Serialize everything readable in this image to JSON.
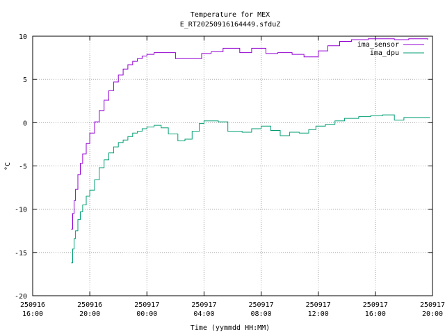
{
  "chart_data": {
    "type": "line",
    "title": "Temperature for MEX",
    "subtitle": "E_RT20250916164449.sfduZ",
    "xlabel": "Time (yymmdd HH:MM)",
    "ylabel": "°C",
    "xlim": [
      "2025-09-16 16:00",
      "2025-09-17 20:00"
    ],
    "ylim": [
      -20,
      10
    ],
    "grid": true,
    "legend_position": "top-right",
    "x_ticks": [
      {
        "date": "250916",
        "time": "16:00"
      },
      {
        "date": "250916",
        "time": "20:00"
      },
      {
        "date": "250917",
        "time": "00:00"
      },
      {
        "date": "250917",
        "time": "04:00"
      },
      {
        "date": "250917",
        "time": "08:00"
      },
      {
        "date": "250917",
        "time": "12:00"
      },
      {
        "date": "250917",
        "time": "16:00"
      },
      {
        "date": "250917",
        "time": "20:00"
      }
    ],
    "y_ticks": [
      -20,
      -15,
      -10,
      -5,
      0,
      5,
      10
    ],
    "series": [
      {
        "name": "ima_sensor",
        "color": "#9400d3",
        "step": true,
        "x": [
          "2025-09-16 18:42",
          "2025-09-16 18:48",
          "2025-09-16 18:54",
          "2025-09-16 19:00",
          "2025-09-16 19:10",
          "2025-09-16 19:20",
          "2025-09-16 19:30",
          "2025-09-16 19:45",
          "2025-09-16 20:00",
          "2025-09-16 20:20",
          "2025-09-16 20:40",
          "2025-09-16 21:00",
          "2025-09-16 21:20",
          "2025-09-16 21:40",
          "2025-09-16 22:00",
          "2025-09-16 22:20",
          "2025-09-16 22:40",
          "2025-09-16 23:00",
          "2025-09-16 23:20",
          "2025-09-16 23:40",
          "2025-09-17 00:00",
          "2025-09-17 00:30",
          "2025-09-17 01:00",
          "2025-09-17 02:00",
          "2025-09-17 03:50",
          "2025-09-17 04:30",
          "2025-09-17 05:20",
          "2025-09-17 06:30",
          "2025-09-17 07:20",
          "2025-09-17 08:20",
          "2025-09-17 09:10",
          "2025-09-17 10:10",
          "2025-09-17 11:00",
          "2025-09-17 12:00",
          "2025-09-17 12:40",
          "2025-09-17 13:30",
          "2025-09-17 14:20",
          "2025-09-17 15:30",
          "2025-09-17 16:30",
          "2025-09-17 17:20",
          "2025-09-17 18:20",
          "2025-09-17 19:40"
        ],
        "values": [
          -12.3,
          -10.5,
          -9.0,
          -7.7,
          -6.0,
          -4.7,
          -3.6,
          -2.4,
          -1.2,
          0.1,
          1.4,
          2.6,
          3.7,
          4.7,
          5.5,
          6.2,
          6.7,
          7.1,
          7.4,
          7.7,
          7.9,
          8.1,
          8.1,
          7.4,
          8.0,
          8.2,
          8.6,
          8.1,
          8.6,
          8.0,
          8.1,
          7.9,
          7.6,
          8.3,
          8.9,
          9.4,
          9.6,
          9.7,
          9.7,
          9.6,
          9.7,
          9.6
        ]
      },
      {
        "name": "ima_dpu",
        "color": "#009e73",
        "step": true,
        "x": [
          "2025-09-16 18:42",
          "2025-09-16 18:48",
          "2025-09-16 18:54",
          "2025-09-16 19:00",
          "2025-09-16 19:10",
          "2025-09-16 19:20",
          "2025-09-16 19:30",
          "2025-09-16 19:45",
          "2025-09-16 20:00",
          "2025-09-16 20:20",
          "2025-09-16 20:40",
          "2025-09-16 21:00",
          "2025-09-16 21:20",
          "2025-09-16 21:40",
          "2025-09-16 22:00",
          "2025-09-16 22:20",
          "2025-09-16 22:40",
          "2025-09-16 23:00",
          "2025-09-16 23:20",
          "2025-09-16 23:40",
          "2025-09-17 00:00",
          "2025-09-17 00:30",
          "2025-09-17 01:00",
          "2025-09-17 01:30",
          "2025-09-17 02:10",
          "2025-09-17 02:40",
          "2025-09-17 03:10",
          "2025-09-17 03:40",
          "2025-09-17 04:00",
          "2025-09-17 05:00",
          "2025-09-17 05:40",
          "2025-09-17 06:40",
          "2025-09-17 07:20",
          "2025-09-17 08:00",
          "2025-09-17 08:40",
          "2025-09-17 09:20",
          "2025-09-17 10:00",
          "2025-09-17 10:40",
          "2025-09-17 11:20",
          "2025-09-17 11:50",
          "2025-09-17 12:30",
          "2025-09-17 13:10",
          "2025-09-17 13:50",
          "2025-09-17 14:50",
          "2025-09-17 15:40",
          "2025-09-17 16:30",
          "2025-09-17 17:20",
          "2025-09-17 18:00",
          "2025-09-17 19:50"
        ],
        "values": [
          -16.2,
          -14.6,
          -13.4,
          -12.5,
          -11.2,
          -10.3,
          -9.5,
          -8.5,
          -7.8,
          -6.6,
          -5.2,
          -4.3,
          -3.5,
          -2.8,
          -2.3,
          -2.0,
          -1.6,
          -1.2,
          -1.0,
          -0.7,
          -0.5,
          -0.3,
          -0.6,
          -1.3,
          -2.1,
          -1.9,
          -1.0,
          -0.1,
          0.2,
          0.1,
          -1.0,
          -1.1,
          -0.7,
          -0.4,
          -0.9,
          -1.5,
          -1.1,
          -1.2,
          -0.8,
          -0.4,
          -0.2,
          0.2,
          0.5,
          0.7,
          0.8,
          0.9,
          0.3,
          0.6,
          0.6
        ]
      }
    ]
  }
}
